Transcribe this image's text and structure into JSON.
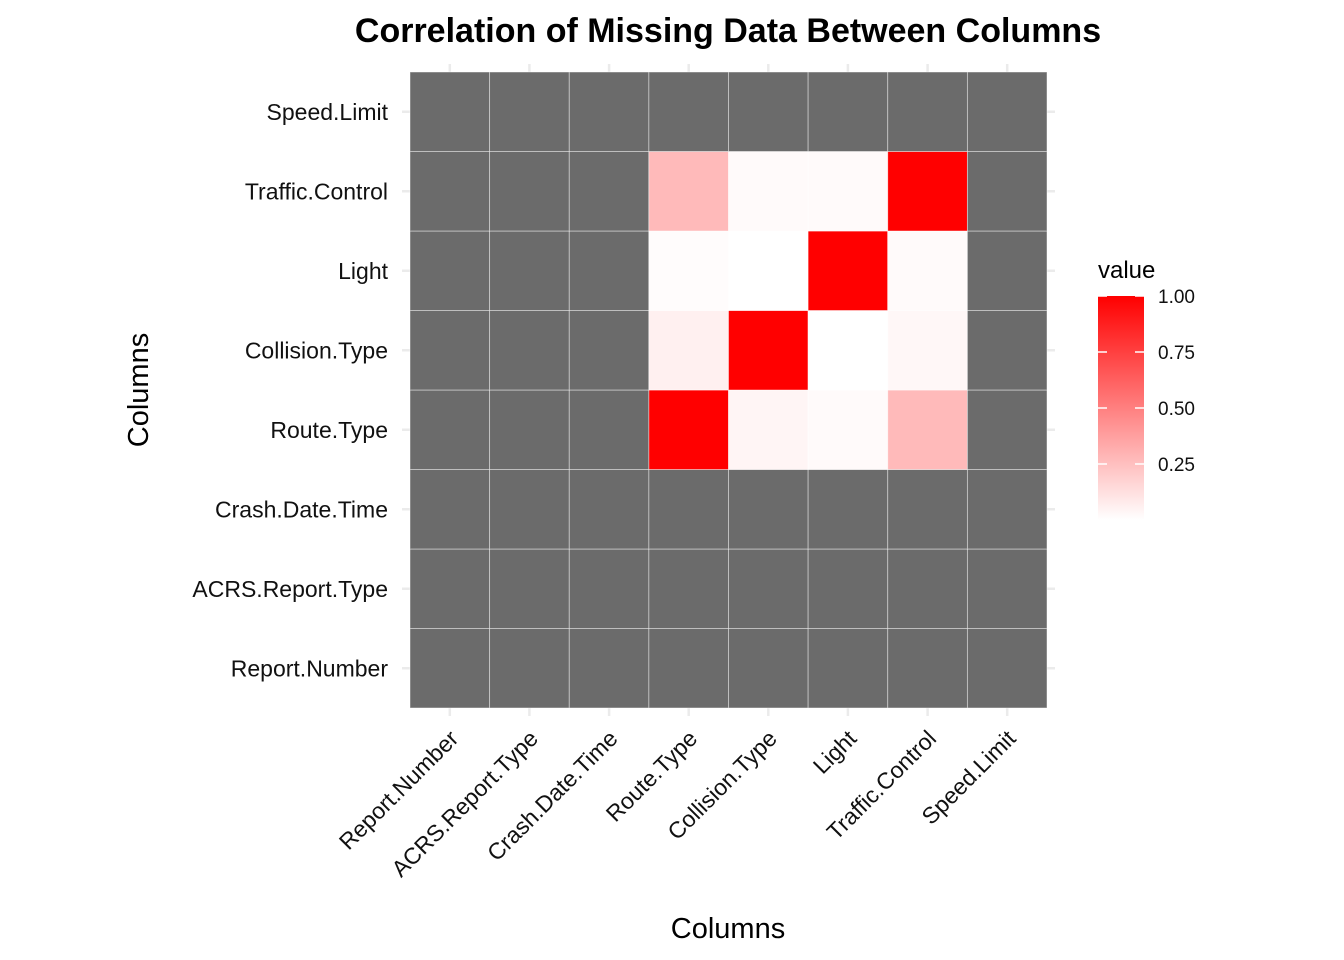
{
  "chart_data": {
    "type": "heatmap",
    "title": "Correlation of Missing Data Between Columns",
    "xlabel": "Columns",
    "ylabel": "Columns",
    "columns": [
      "Report.Number",
      "ACRS.Report.Type",
      "Crash.Date.Time",
      "Route.Type",
      "Collision.Type",
      "Light",
      "Traffic.Control",
      "Speed.Limit"
    ],
    "rows": [
      "Report.Number",
      "ACRS.Report.Type",
      "Crash.Date.Time",
      "Route.Type",
      "Collision.Type",
      "Light",
      "Traffic.Control",
      "Speed.Limit"
    ],
    "values": [
      [
        null,
        null,
        null,
        null,
        null,
        null,
        null,
        null
      ],
      [
        null,
        null,
        null,
        null,
        null,
        null,
        null,
        null
      ],
      [
        null,
        null,
        null,
        null,
        null,
        null,
        null,
        null
      ],
      [
        null,
        null,
        null,
        1.0,
        0.04,
        0.02,
        0.27,
        null
      ],
      [
        null,
        null,
        null,
        0.06,
        1.0,
        0.0,
        0.03,
        null
      ],
      [
        null,
        null,
        null,
        0.01,
        0.0,
        1.0,
        0.02,
        null
      ],
      [
        null,
        null,
        null,
        0.27,
        0.02,
        0.02,
        1.0,
        null
      ],
      [
        null,
        null,
        null,
        null,
        null,
        null,
        null,
        null
      ]
    ],
    "na_color": "#6b6b6b",
    "low_color": "#ffffff",
    "high_color": "#ff0000",
    "grid": true,
    "legend": {
      "title": "value",
      "position": "right",
      "breaks": [
        0.25,
        0.5,
        0.75,
        1.0
      ],
      "labels": [
        "0.25",
        "0.50",
        "0.75",
        "1.00"
      ],
      "range": [
        0,
        1
      ]
    }
  }
}
